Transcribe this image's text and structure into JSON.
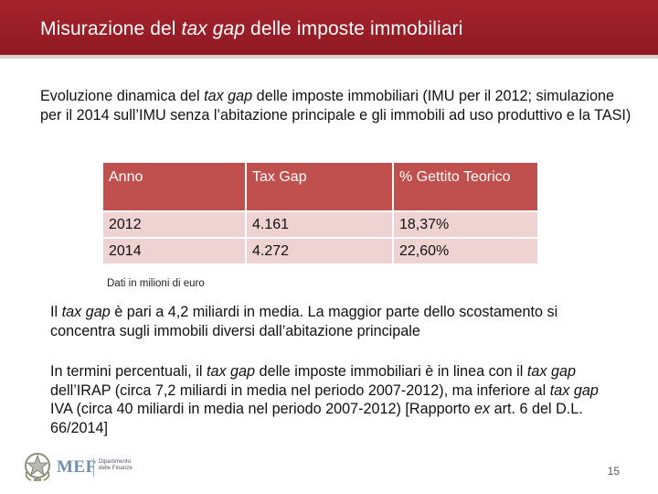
{
  "header": {
    "title_pre": "Misurazione del ",
    "title_em": "tax gap",
    "title_post": " delle imposte immobiliari"
  },
  "subtitle": {
    "pre": "Evoluzione dinamica del ",
    "em": "tax gap",
    "post": " delle imposte immobiliari (IMU per il 2012; simulazione per il 2014 sull’IMU senza l’abitazione principale e gli immobili ad uso produttivo e la TASI)"
  },
  "table": {
    "headers": [
      "Anno",
      "Tax Gap",
      "% Gettito Teorico"
    ],
    "rows": [
      [
        "2012",
        "4.161",
        "18,37%"
      ],
      [
        "2014",
        "4.272",
        "22,60%"
      ]
    ]
  },
  "note": "Dati in milioni di euro",
  "paragraph1": {
    "p1": "Il ",
    "em1": "tax gap",
    "p2": " è pari a 4,2 miliardi in media. La maggior parte dello scostamento si concentra sugli immobili diversi dall’abitazione principale"
  },
  "paragraph2": {
    "p1": "In termini percentuali, il ",
    "em1": "tax gap",
    "p2": " delle imposte immobiliari è in linea con il ",
    "em2": "tax gap",
    "p3": " dell’IRAP (circa 7,2 miliardi in media nel periodo 2007-2012), ma inferiore al ",
    "em3": "tax gap",
    "p4": " IVA (circa 40 miliardi in media nel periodo 2007-2012) [Rapporto ",
    "em4": "ex",
    "p5": " art. 6 del D.L. 66/2014]"
  },
  "footer": {
    "logo_text": "MEF",
    "logo_sub_line1": "Dipartimento",
    "logo_sub_line2": "delle Finanze",
    "page_number": "15"
  },
  "colors": {
    "title_bar": "#a5232d",
    "table_header": "#c0504d",
    "table_row": "#efd3d2"
  }
}
